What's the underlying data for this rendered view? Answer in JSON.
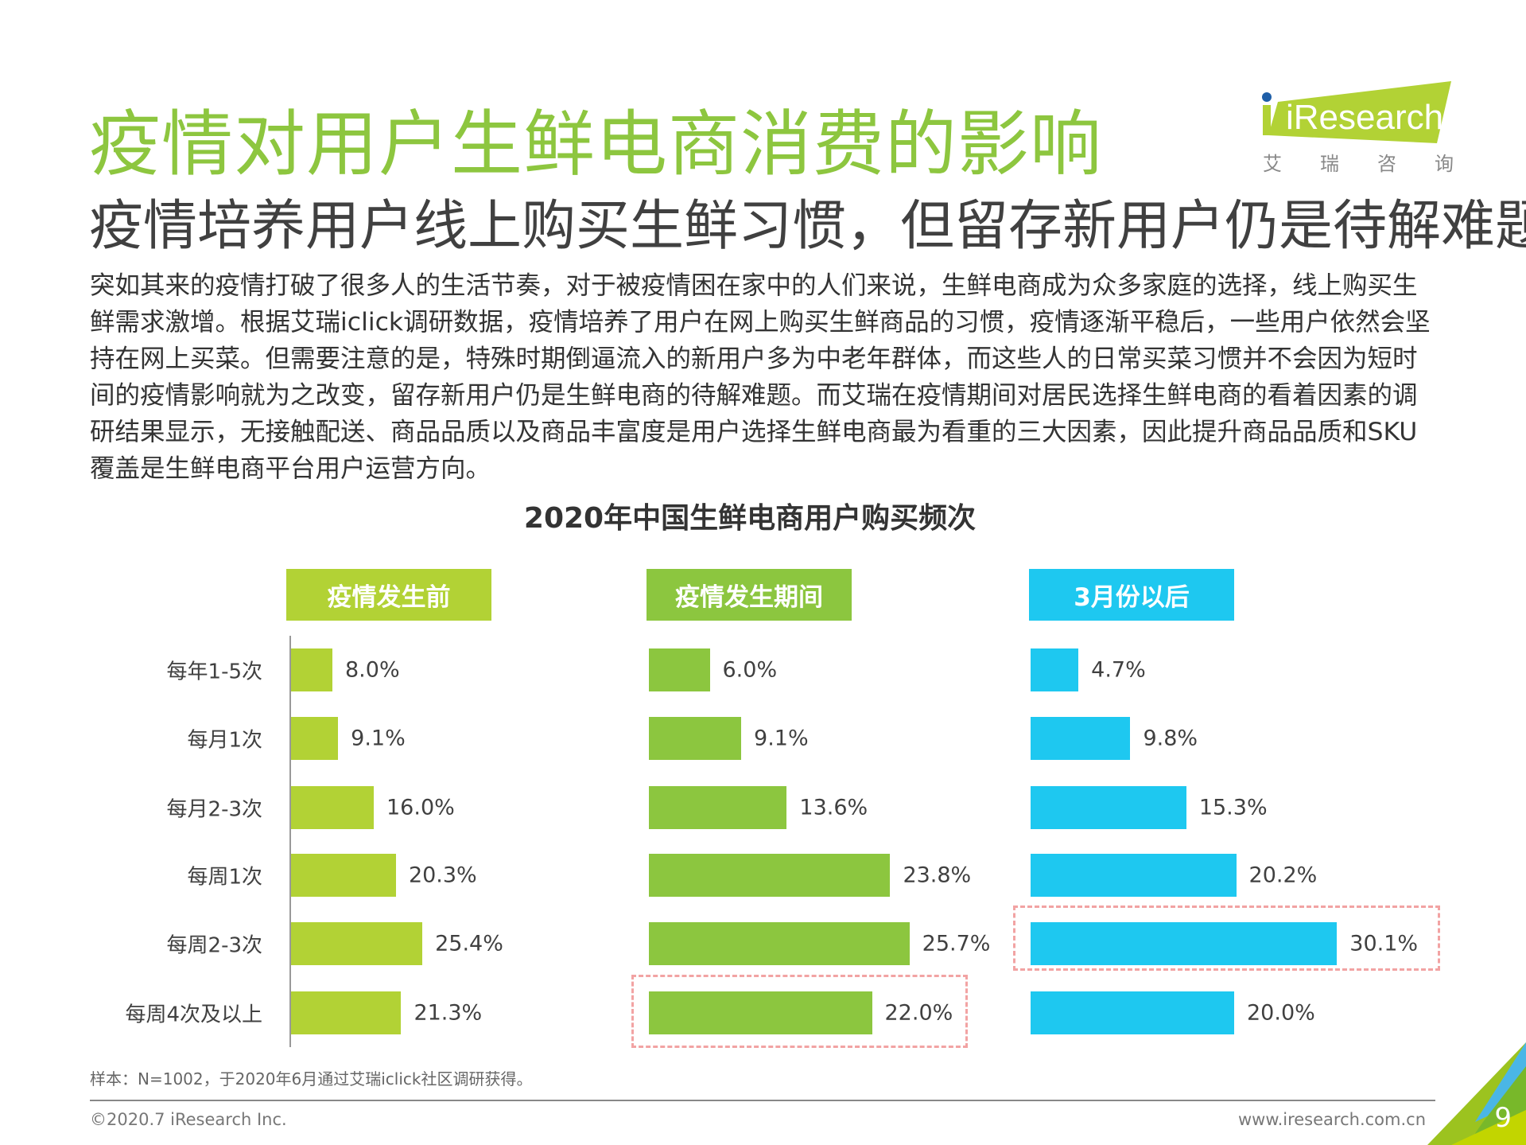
{
  "header": {
    "title": "疫情对用户生鲜电商消费的影响",
    "subtitle": "疫情培养用户线上购买生鲜习惯，但留存新用户仍是待解难题",
    "logo_text": "iResearch",
    "logo_cn": [
      "艾",
      "瑞",
      "咨",
      "询"
    ]
  },
  "body_text": "突如其来的疫情打破了很多人的生活节奏，对于被疫情困在家中的人们来说，生鲜电商成为众多家庭的选择，线上购买生鲜需求激增。根据艾瑞iclick调研数据，疫情培养了用户在网上购买生鲜商品的习惯，疫情逐渐平稳后，一些用户依然会坚持在网上买菜。但需要注意的是，特殊时期倒逼流入的新用户多为中老年群体，而这些人的日常买菜习惯并不会因为短时间的疫情影响就为之改变，留存新用户仍是生鲜电商的待解难题。而艾瑞在疫情期间对居民选择生鲜电商的看着因素的调研结果显示，无接触配送、商品品质以及商品丰富度是用户选择生鲜电商最为看重的三大因素，因此提升商品品质和SKU覆盖是生鲜电商平台用户运营方向。",
  "chart_data": {
    "type": "bar",
    "orientation": "horizontal",
    "title": "2020年中国生鲜电商用户购买频次",
    "categories": [
      "每年1-5次",
      "每月1次",
      "每月2-3次",
      "每周1次",
      "每周2-3次",
      "每周4次及以上"
    ],
    "series": [
      {
        "name": "疫情发生前",
        "values": [
          8.0,
          9.1,
          16.0,
          20.3,
          25.4,
          21.3
        ],
        "labels": [
          "8.0%",
          "9.1%",
          "16.0%",
          "20.3%",
          "25.4%",
          "21.3%"
        ],
        "color": "#b2d235",
        "highlight": null
      },
      {
        "name": "疫情发生期间",
        "values": [
          6.0,
          9.1,
          13.6,
          23.8,
          25.7,
          22.0
        ],
        "labels": [
          "6.0%",
          "9.1%",
          "13.6%",
          "23.8%",
          "25.7%",
          "22.0%"
        ],
        "color": "#8cc63f",
        "highlight": 5
      },
      {
        "name": "3月份以后",
        "values": [
          4.7,
          9.8,
          15.3,
          20.2,
          30.1,
          20.0
        ],
        "labels": [
          "4.7%",
          "9.8%",
          "15.3%",
          "20.2%",
          "30.1%",
          "20.0%"
        ],
        "color": "#1ec8f0",
        "highlight": 4
      }
    ],
    "unit": "%"
  },
  "note": "样本：N=1002，于2020年6月通过艾瑞iclick社区调研获得。",
  "footer": {
    "copyright": "©2020.7 iResearch Inc.",
    "website": "www.iresearch.com.cn",
    "page": "9"
  }
}
